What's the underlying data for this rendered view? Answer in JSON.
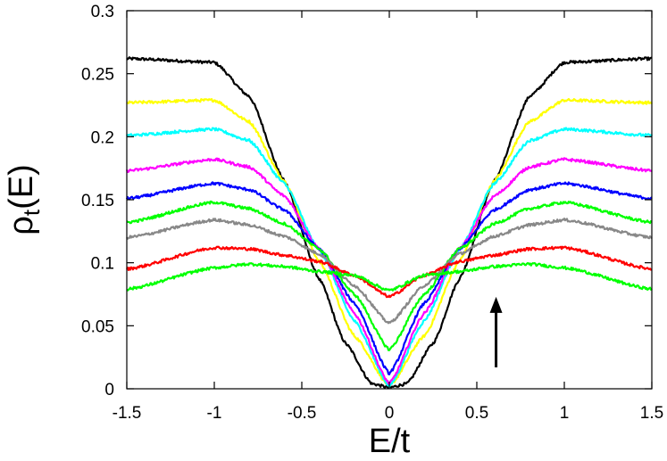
{
  "chart_data": {
    "type": "line",
    "xlabel": "E/t",
    "ylabel_main": "ρ",
    "ylabel_sub": "t",
    "ylabel_tail": "(E)",
    "xlim": [
      -1.5,
      1.5
    ],
    "ylim": [
      0,
      0.3
    ],
    "xticks": [
      -1.5,
      -1,
      -0.5,
      0,
      0.5,
      1,
      1.5
    ],
    "xtick_labels": [
      "-1.5",
      "-1",
      "-0.5",
      "0",
      "0.5",
      "1",
      "1.5"
    ],
    "yticks": [
      0,
      0.05,
      0.1,
      0.15,
      0.2,
      0.25,
      0.3
    ],
    "ytick_labels": [
      "0",
      "0.05",
      "0.1",
      "0.15",
      "0.2",
      "0.25",
      "0.3"
    ],
    "grid": false,
    "legend": "none",
    "annotation": {
      "type": "arrow",
      "direction": "up",
      "x": 0.61,
      "y_from": 0.017,
      "y_to": 0.073
    },
    "series": [
      {
        "color": "#000000",
        "x": [
          -1.5,
          -1.0,
          -0.8,
          -0.6,
          -0.4,
          -0.25,
          -0.1,
          0,
          0.1,
          0.25,
          0.4,
          0.6,
          0.8,
          1.0,
          1.5
        ],
        "values": [
          0.262,
          0.259,
          0.232,
          0.165,
          0.087,
          0.036,
          0.004,
          0.001,
          0.004,
          0.036,
          0.087,
          0.165,
          0.232,
          0.259,
          0.262
        ]
      },
      {
        "color": "#ffff00",
        "x": [
          -1.5,
          -1.0,
          -0.8,
          -0.6,
          -0.4,
          -0.2,
          0,
          0.2,
          0.4,
          0.6,
          0.8,
          1.0,
          1.5
        ],
        "values": [
          0.227,
          0.229,
          0.212,
          0.165,
          0.101,
          0.042,
          0.002,
          0.042,
          0.101,
          0.165,
          0.212,
          0.229,
          0.227
        ]
      },
      {
        "color": "#00ffff",
        "x": [
          -1.5,
          -1.0,
          -0.8,
          -0.6,
          -0.4,
          -0.2,
          0,
          0.2,
          0.4,
          0.6,
          0.8,
          1.0,
          1.5
        ],
        "values": [
          0.201,
          0.206,
          0.197,
          0.163,
          0.11,
          0.054,
          0.002,
          0.054,
          0.11,
          0.163,
          0.197,
          0.206,
          0.201
        ]
      },
      {
        "color": "#ff00ff",
        "x": [
          -1.5,
          -1.0,
          -0.8,
          -0.6,
          -0.4,
          -0.2,
          0,
          0.2,
          0.4,
          0.6,
          0.8,
          1.0,
          1.5
        ],
        "values": [
          0.173,
          0.182,
          0.176,
          0.153,
          0.111,
          0.06,
          0.004,
          0.06,
          0.111,
          0.153,
          0.176,
          0.182,
          0.173
        ]
      },
      {
        "color": "#0000ff",
        "x": [
          -1.5,
          -1.0,
          -0.8,
          -0.6,
          -0.4,
          -0.2,
          0,
          0.2,
          0.4,
          0.6,
          0.8,
          1.0,
          1.5
        ],
        "values": [
          0.151,
          0.163,
          0.158,
          0.142,
          0.111,
          0.068,
          0.012,
          0.068,
          0.111,
          0.142,
          0.158,
          0.163,
          0.151
        ]
      },
      {
        "color": "#00ff00",
        "x": [
          -1.5,
          -1.0,
          -0.8,
          -0.6,
          -0.4,
          -0.2,
          0,
          0.2,
          0.4,
          0.6,
          0.8,
          1.0,
          1.5
        ],
        "values": [
          0.132,
          0.148,
          0.143,
          0.131,
          0.111,
          0.075,
          0.031,
          0.075,
          0.111,
          0.131,
          0.143,
          0.148,
          0.132
        ]
      },
      {
        "color": "#888888",
        "x": [
          -1.5,
          -1.0,
          -0.8,
          -0.6,
          -0.4,
          -0.2,
          0,
          0.2,
          0.4,
          0.6,
          0.8,
          1.0,
          1.5
        ],
        "values": [
          0.12,
          0.134,
          0.13,
          0.121,
          0.107,
          0.082,
          0.052,
          0.082,
          0.107,
          0.121,
          0.13,
          0.134,
          0.12
        ]
      },
      {
        "color": "#ff0000",
        "x": [
          -1.5,
          -1.0,
          -0.8,
          -0.6,
          -0.4,
          -0.2,
          0,
          0.2,
          0.4,
          0.6,
          0.8,
          1.0,
          1.5
        ],
        "values": [
          0.095,
          0.112,
          0.111,
          0.106,
          0.101,
          0.09,
          0.073,
          0.09,
          0.101,
          0.106,
          0.111,
          0.112,
          0.095
        ]
      },
      {
        "color": "#00ff00",
        "x": [
          -1.5,
          -1.0,
          -0.8,
          -0.6,
          -0.4,
          -0.2,
          0,
          0.2,
          0.4,
          0.6,
          0.8,
          1.0,
          1.5
        ],
        "values": [
          0.079,
          0.096,
          0.099,
          0.097,
          0.093,
          0.09,
          0.078,
          0.09,
          0.093,
          0.097,
          0.099,
          0.096,
          0.079
        ]
      }
    ]
  }
}
